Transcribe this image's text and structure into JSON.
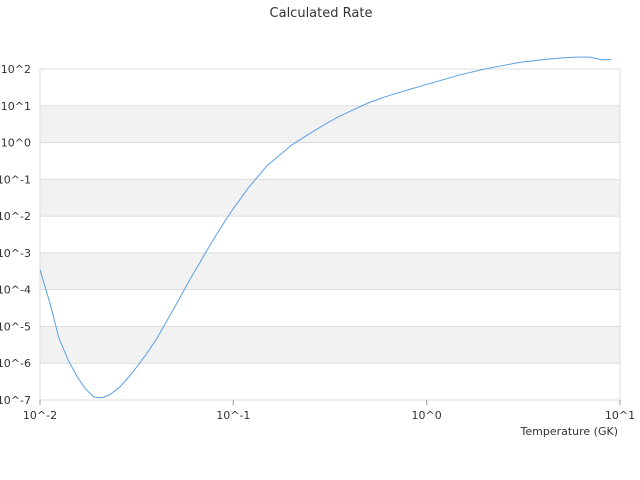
{
  "chart_data": {
    "type": "line",
    "title": "Calculated Rate",
    "xlabel": "Temperature (GK)",
    "ylabel": "",
    "x_scale": "log",
    "y_scale": "log",
    "xlim": [
      0.01,
      10
    ],
    "ylim": [
      1e-07,
      100
    ],
    "x_tick_labels": [
      "10^-2",
      "10^-1",
      "10^0",
      "10^1"
    ],
    "y_tick_labels": [
      "10^-7",
      "10^-6",
      "10^-5",
      "10^-4",
      "10^-3",
      "10^-2",
      "10^-1",
      "10^0",
      "10^1",
      "10^2"
    ],
    "grid": "alternating horizontal bands",
    "legend": "none",
    "colors": {
      "line": "#5aa0e6",
      "band": "#f2f2f2",
      "grid": "#dddddd"
    },
    "series": [
      {
        "x": [
          0.01,
          0.0113,
          0.0125,
          0.014,
          0.0157,
          0.0172,
          0.019,
          0.021,
          0.023,
          0.026,
          0.03,
          0.035,
          0.04,
          0.05,
          0.06,
          0.07,
          0.08,
          0.09,
          0.1,
          0.12,
          0.15,
          0.2,
          0.25,
          0.3,
          0.35,
          0.4,
          0.5,
          0.6,
          0.7,
          0.8,
          1.0,
          1.2,
          1.5,
          2.0,
          2.5,
          3.0,
          4.0,
          5.0,
          6.0,
          7.0,
          8.0,
          9.0
        ],
        "y": [
          0.00035,
          4e-05,
          5e-06,
          1.2e-06,
          4e-07,
          2e-07,
          1.2e-07,
          1.15e-07,
          1.4e-07,
          2.3e-07,
          5.5e-07,
          1.6e-06,
          4.5e-06,
          3.5e-05,
          0.0002,
          0.0008,
          0.0026,
          0.007,
          0.016,
          0.06,
          0.24,
          0.85,
          1.8,
          3.2,
          5.0,
          7.0,
          12,
          17,
          22,
          27,
          38,
          50,
          70,
          100,
          125,
          150,
          180,
          200,
          210,
          210,
          180,
          180
        ]
      }
    ]
  }
}
